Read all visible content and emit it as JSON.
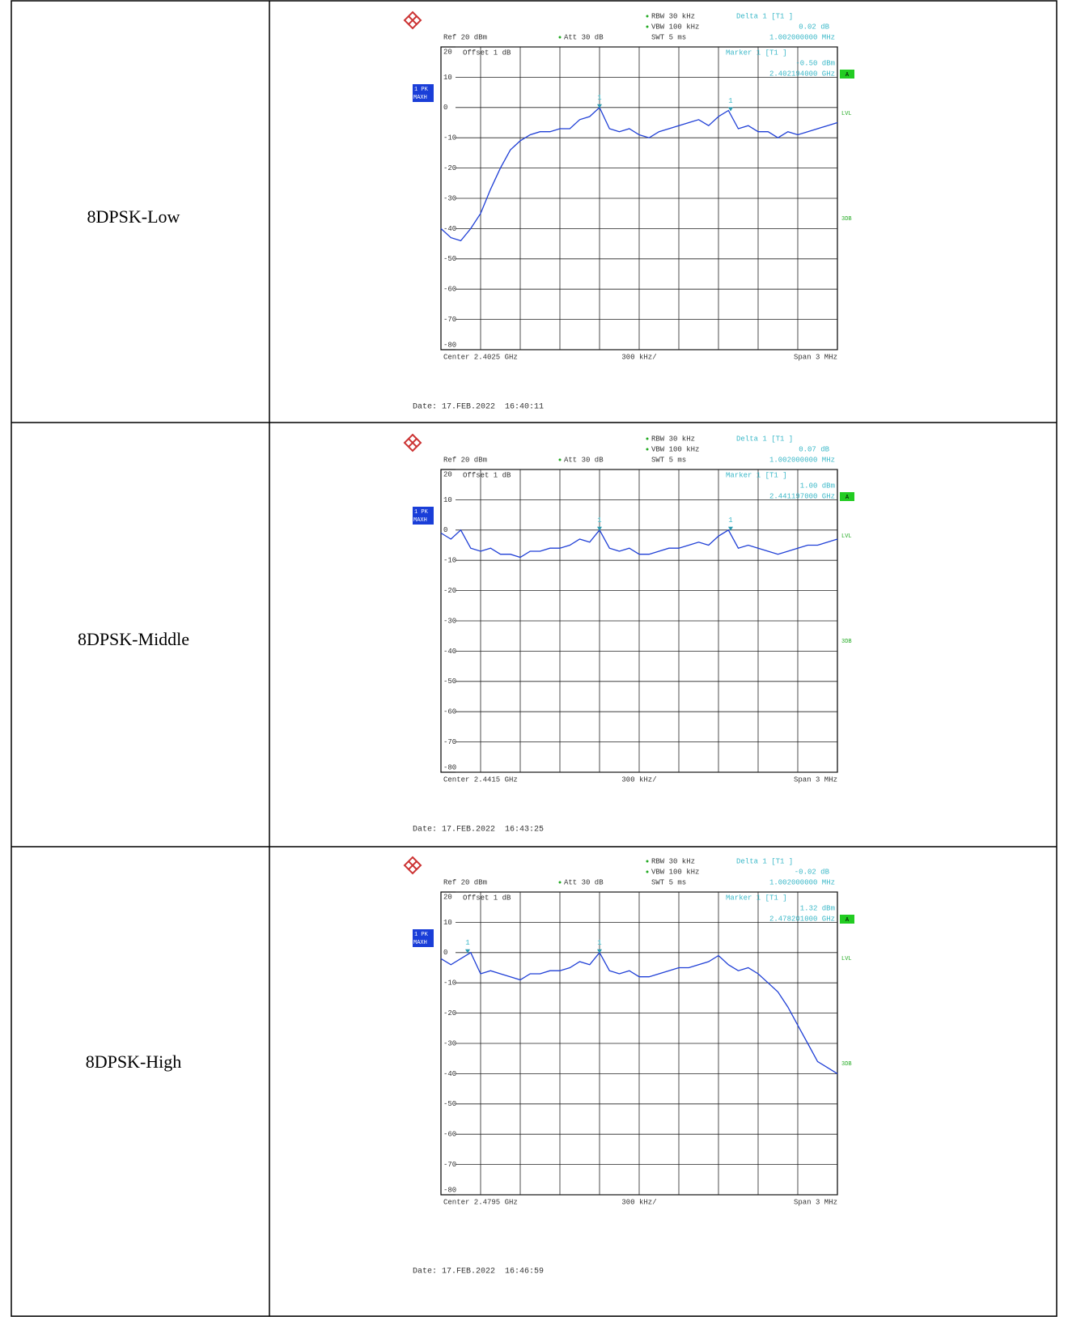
{
  "rows": [
    {
      "label": "8DPSK-Low",
      "date": "Date: 17.FEB.2022  16:40:11",
      "plot": {
        "rbw": "RBW 30 kHz",
        "vbw": "VBW 100 kHz",
        "swt": "SWT 5 ms",
        "ref": "Ref 20 dBm",
        "att": "Att 30 dB",
        "delta": "Delta 1 [T1 ]",
        "delta_value": "0.02 dB",
        "delta_freq": "1.002000000 MHz",
        "offset": "Offset 1 dB",
        "marker": "Marker 1 [T1 ]",
        "marker_value": "-0.50 dBm",
        "marker_freq": "2.402194000 GHz",
        "trace_label": [
          "1 PK",
          "MAXH"
        ],
        "side": [
          "A",
          "LVL",
          "3DB"
        ],
        "markers": [
          "1",
          "1"
        ],
        "center": "Center 2.4025 GHz",
        "per_div": "300 kHz/",
        "span": "Span 3 MHz",
        "ylim": [
          -80,
          20
        ],
        "yticks": [
          20,
          10,
          0,
          -10,
          -20,
          -30,
          -40,
          -50,
          -60,
          -70,
          -80
        ],
        "trace": [
          -40,
          -43,
          -44,
          -40,
          -35,
          -27,
          -20,
          -14,
          -11,
          -9,
          -8,
          -8,
          -7,
          -7,
          -4,
          -3,
          0,
          -7,
          -8,
          -7,
          -9,
          -10,
          -8,
          -7,
          -6,
          -5,
          -4,
          -6,
          -3,
          -1,
          -7,
          -6,
          -8,
          -8,
          -10,
          -8,
          -9,
          -8,
          -7,
          -6,
          -5
        ]
      }
    },
    {
      "label": "8DPSK-Middle",
      "date": "Date: 17.FEB.2022  16:43:25",
      "plot": {
        "rbw": "RBW 30 kHz",
        "vbw": "VBW 100 kHz",
        "swt": "SWT 5 ms",
        "ref": "Ref 20 dBm",
        "att": "Att 30 dB",
        "delta": "Delta 1 [T1 ]",
        "delta_value": "0.07 dB",
        "delta_freq": "1.002000000 MHz",
        "offset": "Offset 1 dB",
        "marker": "Marker 1 [T1 ]",
        "marker_value": "1.00 dBm",
        "marker_freq": "2.441197000 GHz",
        "trace_label": [
          "1 PK",
          "MAXH"
        ],
        "side": [
          "A",
          "LVL",
          "3DB"
        ],
        "markers": [
          "1",
          "1"
        ],
        "center": "Center 2.4415 GHz",
        "per_div": "300 kHz/",
        "span": "Span 3 MHz",
        "ylim": [
          -80,
          20
        ],
        "yticks": [
          20,
          10,
          0,
          -10,
          -20,
          -30,
          -40,
          -50,
          -60,
          -70,
          -80
        ],
        "trace": [
          -1,
          -3,
          0,
          -6,
          -7,
          -6,
          -8,
          -8,
          -9,
          -7,
          -7,
          -6,
          -6,
          -5,
          -3,
          -4,
          0,
          -6,
          -7,
          -6,
          -8,
          -8,
          -7,
          -6,
          -6,
          -5,
          -4,
          -5,
          -2,
          0,
          -6,
          -5,
          -6,
          -7,
          -8,
          -7,
          -6,
          -5,
          -5,
          -4,
          -3
        ]
      }
    },
    {
      "label": "8DPSK-High",
      "date": "Date: 17.FEB.2022  16:46:59",
      "plot": {
        "rbw": "RBW 30 kHz",
        "vbw": "VBW 100 kHz",
        "swt": "SWT 5 ms",
        "ref": "Ref 20 dBm",
        "att": "Att 30 dB",
        "delta": "Delta 1 [T1 ]",
        "delta_value": "-0.02 dB",
        "delta_freq": "1.002000000 MHz",
        "offset": "Offset 1 dB",
        "marker": "Marker 1 [T1 ]",
        "marker_value": "1.32 dBm",
        "marker_freq": "2.478201000 GHz",
        "trace_label": [
          "1 PK",
          "MAXH"
        ],
        "side": [
          "A",
          "LVL",
          "3DB"
        ],
        "markers": [
          "1",
          "1"
        ],
        "center": "Center 2.4795 GHz",
        "per_div": "300 kHz/",
        "span": "Span 3 MHz",
        "ylim": [
          -80,
          20
        ],
        "yticks": [
          20,
          10,
          0,
          -10,
          -20,
          -30,
          -40,
          -50,
          -60,
          -70,
          -80
        ],
        "trace": [
          -2,
          -4,
          -2,
          0,
          -7,
          -6,
          -7,
          -8,
          -9,
          -7,
          -7,
          -6,
          -6,
          -5,
          -3,
          -4,
          0,
          -6,
          -7,
          -6,
          -8,
          -8,
          -7,
          -6,
          -5,
          -5,
          -4,
          -3,
          -1,
          -4,
          -6,
          -5,
          -7,
          -10,
          -13,
          -18,
          -24,
          -30,
          -36,
          -38,
          -40
        ]
      }
    }
  ]
}
